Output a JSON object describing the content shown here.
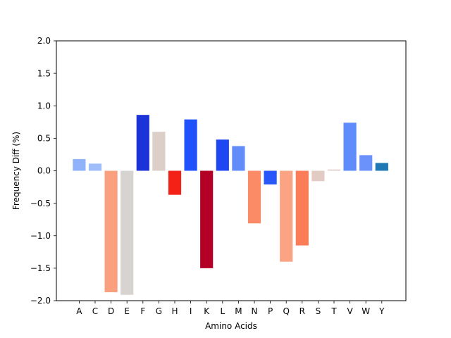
{
  "chart_data": {
    "type": "bar",
    "title": "",
    "xlabel": "Amino Acids",
    "ylabel": "Frequency Diff (%)",
    "ylim": [
      -2.0,
      2.0
    ],
    "yticks": [
      "2.0",
      "1.5",
      "1.0",
      "0.5",
      "0.0",
      "−0.5",
      "−1.0",
      "−1.5",
      "−2.0"
    ],
    "ytick_values": [
      2.0,
      1.5,
      1.0,
      0.5,
      0.0,
      -0.5,
      -1.0,
      -1.5,
      -2.0
    ],
    "grid": false,
    "categories": [
      "A",
      "C",
      "D",
      "E",
      "F",
      "G",
      "H",
      "I",
      "K",
      "L",
      "M",
      "N",
      "P",
      "Q",
      "R",
      "S",
      "T",
      "V",
      "W",
      "Y"
    ],
    "values": [
      0.18,
      0.11,
      -1.87,
      -1.91,
      0.86,
      0.6,
      -0.37,
      0.79,
      -1.5,
      0.48,
      0.38,
      -0.81,
      -0.21,
      -1.4,
      -1.15,
      -0.16,
      0.02,
      0.74,
      0.24,
      0.12
    ],
    "colors": [
      "#8fb2fb",
      "#9fbdfb",
      "#fba07f",
      "#d6d3d0",
      "#1c33d7",
      "#dccfc7",
      "#f42216",
      "#1f52fb",
      "#b20026",
      "#1f46f3",
      "#638cfb",
      "#fb8a66",
      "#2757fb",
      "#fba383",
      "#fb7d57",
      "#e1cbc2",
      "#e0d3cf",
      "#5f8bfb",
      "#6b92fb",
      "#1f77b4"
    ]
  }
}
